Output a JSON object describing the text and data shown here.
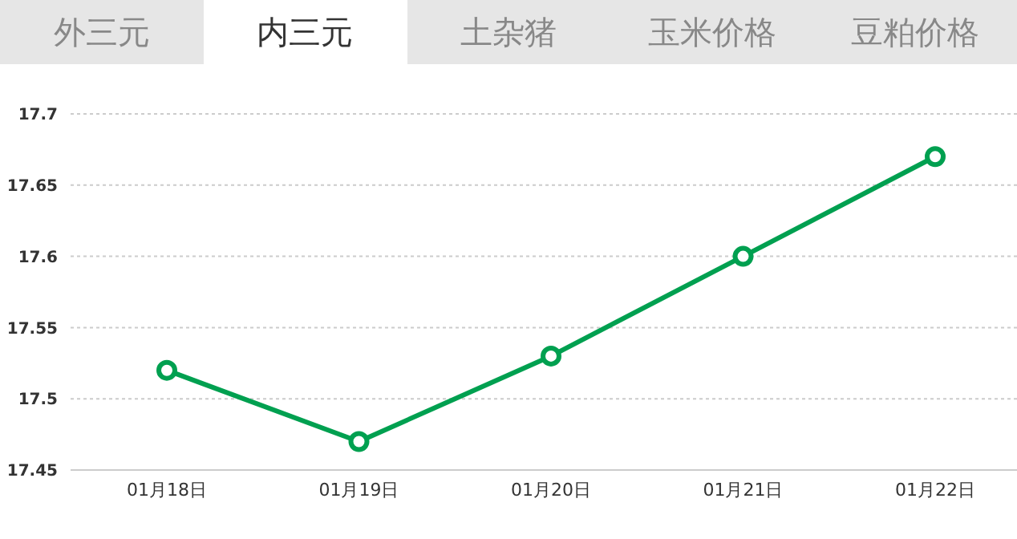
{
  "chart_data": {
    "type": "line",
    "title": "内三元",
    "annotations": [
      "外三元",
      "土杂猪",
      "玉米价格",
      "豆粕价格"
    ],
    "categories": [
      "01月18日",
      "01月19日",
      "01月20日",
      "01月21日",
      "01月22日"
    ],
    "series": [
      {
        "color": "#00a050",
        "values": [
          17.52,
          17.47,
          17.53,
          17.6,
          17.67
        ]
      }
    ],
    "ylim": [
      17.45,
      17.7
    ],
    "yticks": [
      17.45,
      17.5,
      17.55,
      17.6,
      17.65,
      17.7
    ],
    "grid": "y",
    "marker": "circle",
    "line_style": "solid",
    "legend": false
  }
}
